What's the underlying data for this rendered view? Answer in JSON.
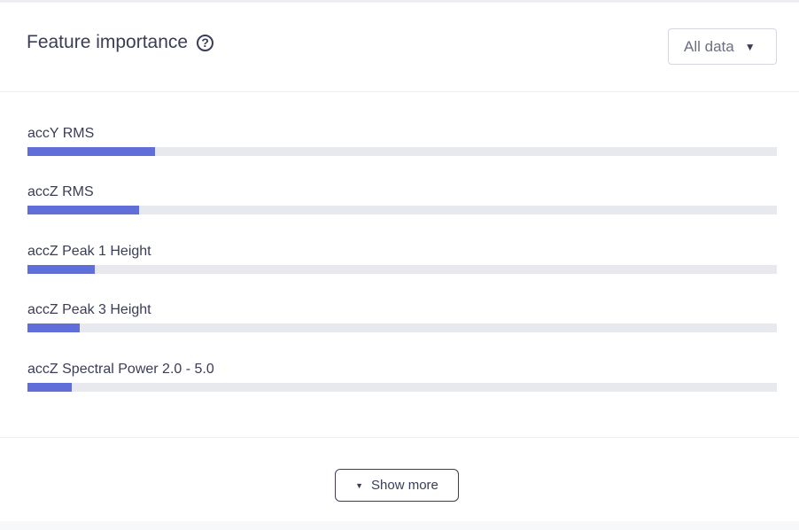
{
  "header": {
    "title": "Feature importance",
    "help_icon": "question-circle-icon",
    "filter_value": "All data"
  },
  "features": [
    {
      "label": "accY RMS",
      "importance": 0.17
    },
    {
      "label": "accZ RMS",
      "importance": 0.149
    },
    {
      "label": "accZ Peak 1 Height",
      "importance": 0.09
    },
    {
      "label": "accZ Peak 3 Height",
      "importance": 0.07
    },
    {
      "label": "accZ Spectral Power 2.0 - 5.0",
      "importance": 0.059
    }
  ],
  "colors": {
    "bar_fill": "#5f6ed8",
    "bar_track": "#e8e9ee"
  },
  "footer": {
    "show_more_label": "Show more",
    "show_more_icon": "caret-down-icon"
  }
}
